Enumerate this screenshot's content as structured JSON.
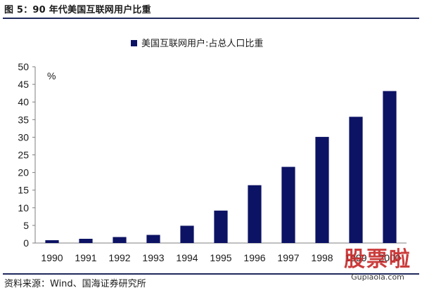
{
  "figure": {
    "title": "图 5：90 年代美国互联网用户比重",
    "source": "资料来源：Wind、国海证券研究所"
  },
  "watermark": {
    "main": "股票啦",
    "sub": "Gupiaola.com"
  },
  "colors": {
    "bar": "#0c1364",
    "rule": "#1f2a5c",
    "axis": "#7f7f7f"
  },
  "chart_data": {
    "type": "bar",
    "categories": [
      "1990",
      "1991",
      "1992",
      "1993",
      "1994",
      "1995",
      "1996",
      "1997",
      "1998",
      "1999",
      "2000"
    ],
    "series": [
      {
        "name": "美国互联网用户:占总人口比重",
        "values": [
          0.8,
          1.2,
          1.7,
          2.3,
          4.9,
          9.2,
          16.4,
          21.6,
          30.1,
          35.8,
          43.1
        ]
      }
    ],
    "unit_label": "%",
    "ylim": [
      0,
      50
    ],
    "yticks": [
      0,
      5,
      10,
      15,
      20,
      25,
      30,
      35,
      40,
      45,
      50
    ],
    "legend_position": "top-center",
    "grid": false
  }
}
